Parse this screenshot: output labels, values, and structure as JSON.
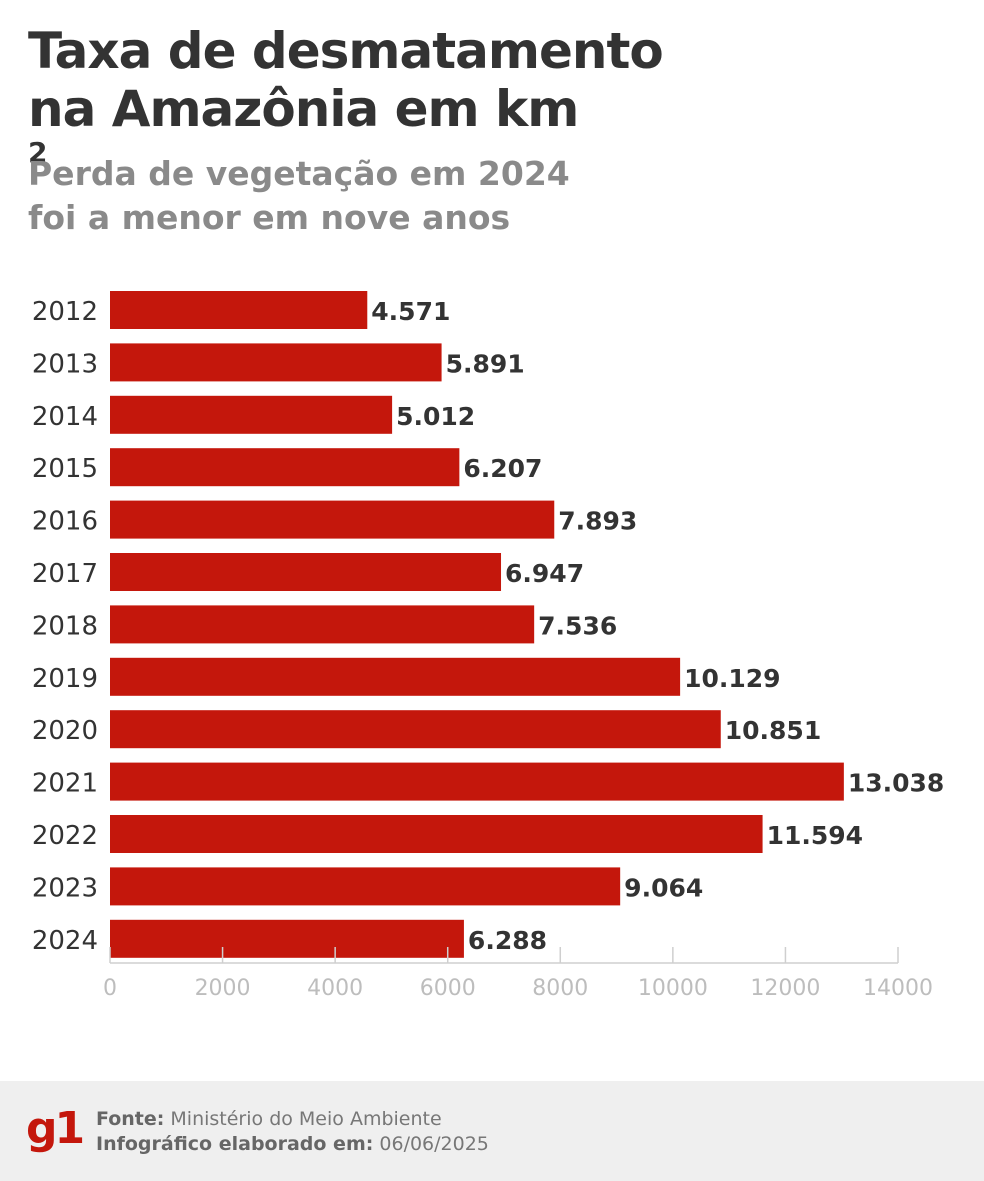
{
  "header": {
    "title_line1": "Taxa de desmatamento",
    "title_line2": "na Amazônia em km",
    "title_sup": "2",
    "subtitle_line1": "Perda de vegetação em 2024",
    "subtitle_line2": "foi a menor em nove anos"
  },
  "footer": {
    "logo": "g1",
    "source_label": "Fonte:",
    "source_value": "Ministério do Meio Ambiente",
    "date_label": "Infográfico elaborado em:",
    "date_value": "06/06/2025"
  },
  "colors": {
    "bar": "#c4170c",
    "axis": "#cfcfcf",
    "tick_text": "#bdbdbd",
    "label_text": "#333333"
  },
  "chart_data": {
    "type": "bar",
    "orientation": "horizontal",
    "categories": [
      "2012",
      "2013",
      "2014",
      "2015",
      "2016",
      "2017",
      "2018",
      "2019",
      "2020",
      "2021",
      "2022",
      "2023",
      "2024"
    ],
    "values": [
      4571,
      5891,
      5012,
      6207,
      7893,
      6947,
      7536,
      10129,
      10851,
      13038,
      11594,
      9064,
      6288
    ],
    "data_labels": [
      "4.571",
      "5.891",
      "5.012",
      "6.207",
      "7.893",
      "6.947",
      "7.536",
      "10.129",
      "10.851",
      "13.038",
      "11.594",
      "9.064",
      "6.288"
    ],
    "xlim": [
      0,
      14000
    ],
    "x_ticks": [
      0,
      2000,
      4000,
      6000,
      8000,
      10000,
      12000,
      14000
    ],
    "x_tick_labels": [
      "0",
      "2000",
      "4000",
      "6000",
      "8000",
      "10000",
      "12000",
      "14000"
    ],
    "grid": false
  }
}
